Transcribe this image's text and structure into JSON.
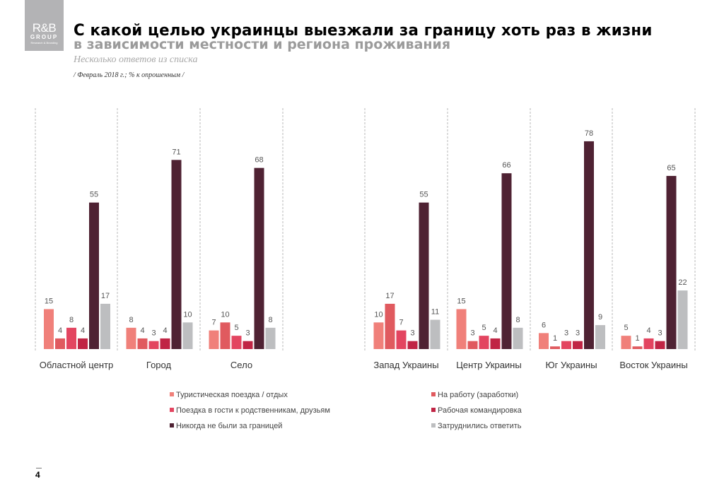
{
  "logo": {
    "line1": "R&B",
    "line2": "GROUP",
    "line3": "Research & Branding"
  },
  "header": {
    "title": "С какой целью украинцы выезжали за границу хоть раз в жизни",
    "subtitle": "в зависимости местности и региона проживания",
    "note": "Несколько ответов из списка",
    "source": "/ Февраль 2018  г.; % к опрошенным /"
  },
  "page_number": "4",
  "chart_data": {
    "type": "bar",
    "title": "С какой целью украинцы выезжали за границу хоть раз в жизни",
    "xlabel": "",
    "ylabel": "% к опрошенным",
    "ylim": [
      0,
      80
    ],
    "grid": false,
    "legend_position": "bottom",
    "groups": [
      {
        "name": "left",
        "categories": [
          "Областной центр",
          "Город",
          "Село"
        ]
      },
      {
        "name": "right",
        "categories": [
          "Запад Украины",
          "Центр Украины",
          "Юг Украины",
          "Восток Украины"
        ]
      }
    ],
    "categories": [
      "Областной центр",
      "Город",
      "Село",
      "Запад Украины",
      "Центр Украины",
      "Юг Украины",
      "Восток Украины"
    ],
    "series": [
      {
        "name": "Туристическая поездка / отдых",
        "color": "#f0807a",
        "values": [
          15,
          8,
          7,
          10,
          15,
          6,
          5
        ]
      },
      {
        "name": "На работу (заработки)",
        "color": "#e05a5f",
        "values": [
          4,
          4,
          10,
          17,
          3,
          1,
          1
        ]
      },
      {
        "name": "Поездка в гости к родственникам, друзьям",
        "color": "#e34560",
        "values": [
          8,
          3,
          5,
          7,
          5,
          3,
          4
        ]
      },
      {
        "name": "Рабочая командировка",
        "color": "#c02545",
        "values": [
          4,
          4,
          3,
          3,
          4,
          3,
          3
        ]
      },
      {
        "name": "Никогда не были за границей",
        "color": "#4f2233",
        "values": [
          55,
          71,
          68,
          55,
          66,
          78,
          65
        ]
      },
      {
        "name": "Затруднились ответить",
        "color": "#bdbec0",
        "values": [
          17,
          10,
          8,
          11,
          8,
          9,
          22
        ]
      }
    ]
  }
}
